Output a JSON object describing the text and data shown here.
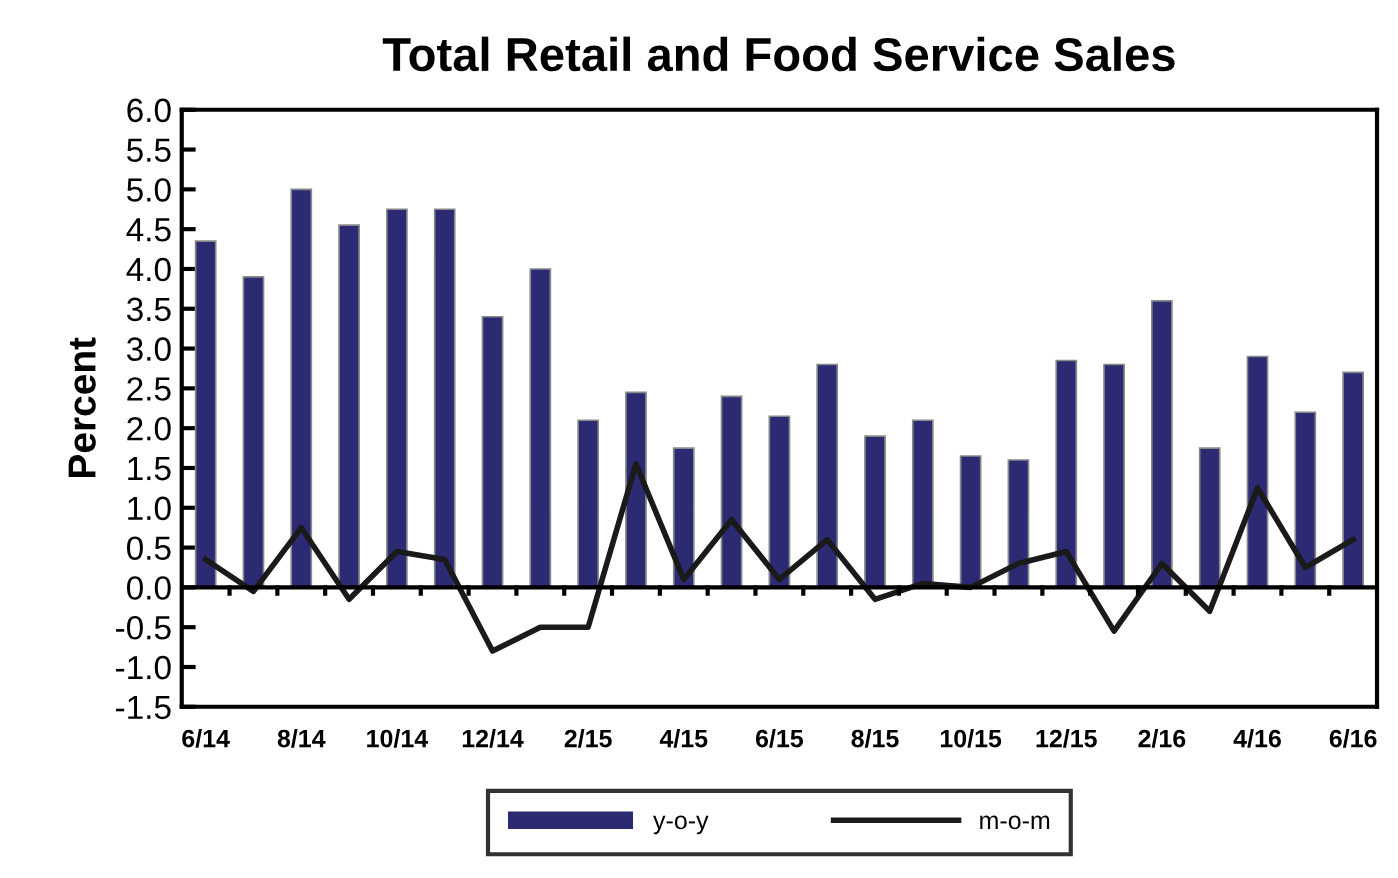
{
  "chart_data": {
    "type": "bar",
    "title": "Total Retail and Food Service Sales",
    "ylabel": "Percent",
    "categories": [
      "6/14",
      null,
      "8/14",
      null,
      "10/14",
      null,
      "12/14",
      null,
      "2/15",
      null,
      "4/15",
      null,
      "6/15",
      null,
      "8/15",
      null,
      "10/15",
      null,
      "12/15",
      null,
      "2/16",
      null,
      "4/16",
      null,
      "6/16"
    ],
    "series": [
      {
        "name": "y-o-y",
        "color": "#2b2a72",
        "values": [
          4.35,
          3.9,
          5.0,
          4.55,
          4.75,
          4.75,
          3.4,
          4.0,
          2.1,
          2.45,
          1.75,
          2.4,
          2.15,
          2.8,
          1.9,
          2.1,
          1.65,
          1.6,
          2.85,
          2.8,
          3.6,
          1.75,
          2.9,
          2.2,
          2.7
        ]
      },
      {
        "name": "m-o-m",
        "type": "line",
        "color": "#1a1a1a",
        "values": [
          0.35,
          -0.05,
          0.75,
          -0.15,
          0.45,
          0.35,
          -0.8,
          -0.5,
          -0.5,
          1.55,
          0.1,
          0.85,
          0.1,
          0.6,
          -0.15,
          0.05,
          0.0,
          0.3,
          0.45,
          -0.55,
          0.3,
          -0.3,
          1.25,
          0.25,
          0.6
        ]
      }
    ],
    "ylim": [
      -1.5,
      6.0
    ],
    "yticks": [
      {
        "value": -1.5,
        "label": "-1.5"
      },
      {
        "value": -1,
        "label": "-1.0"
      },
      {
        "value": -0.5,
        "label": "-0.5"
      },
      {
        "value": 0,
        "label": "0.0"
      },
      {
        "value": 0.5,
        "label": "0.5"
      },
      {
        "value": 1,
        "label": "1.0"
      },
      {
        "value": 1.5,
        "label": "1.5"
      },
      {
        "value": 2,
        "label": "2.0"
      },
      {
        "value": 2.5,
        "label": "2.5"
      },
      {
        "value": 3,
        "label": "3.0"
      },
      {
        "value": 3.5,
        "label": "3.5"
      },
      {
        "value": 4,
        "label": "4.0"
      },
      {
        "value": 4.5,
        "label": "4.5"
      },
      {
        "value": 5,
        "label": "5.0"
      },
      {
        "value": 5.5,
        "label": "5.5"
      },
      {
        "value": 6,
        "label": "6.0"
      }
    ],
    "legend": "bottom",
    "marker": "none",
    "line_style": "solid"
  }
}
